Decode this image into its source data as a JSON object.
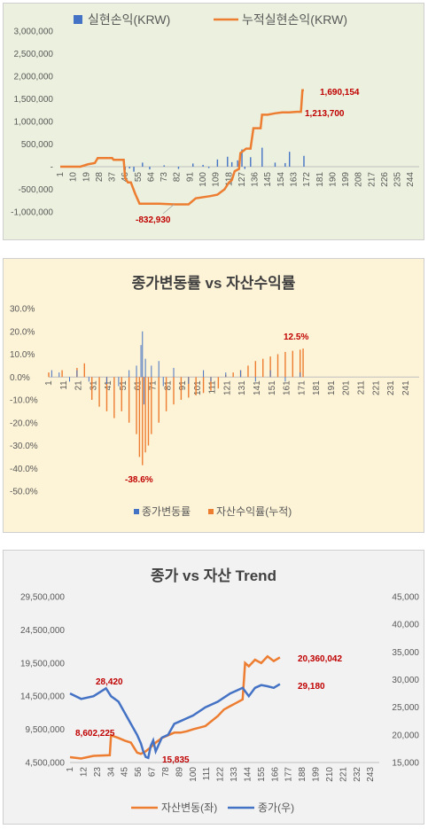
{
  "chart_data": [
    {
      "type": "bar+line",
      "title": "",
      "legend": [
        "실현손익(KRW)",
        "누적실현손익(KRW)"
      ],
      "legend_position": "top",
      "y_ticks": [
        "3,000,000",
        "2,500,000",
        "2,000,000",
        "1,500,000",
        "1,000,000",
        "500,000",
        "-",
        "-500,000",
        "-1,000,000"
      ],
      "ylim": [
        -1000000,
        3000000
      ],
      "x_ticks": [
        "1",
        "10",
        "19",
        "28",
        "37",
        "46",
        "55",
        "64",
        "73",
        "82",
        "91",
        "100",
        "109",
        "118",
        "127",
        "136",
        "145",
        "154",
        "163",
        "172",
        "181",
        "190",
        "199",
        "208",
        "217",
        "226",
        "235",
        "244"
      ],
      "xlim": [
        1,
        250
      ],
      "annotations": [
        "-832,930",
        "1,690,154",
        "1,213,700"
      ],
      "series": [
        {
          "name": "실현손익(KRW)",
          "type": "bar",
          "color": "#4472c4",
          "x": [
            46,
            49,
            52,
            58,
            63,
            73,
            83,
            93,
            100,
            104,
            110,
            117,
            120,
            124,
            127,
            129,
            133,
            141,
            150,
            157,
            160,
            170
          ],
          "y": [
            -80000,
            -40000,
            -110000,
            90000,
            -60000,
            30000,
            -50000,
            70000,
            40000,
            -30000,
            160000,
            220000,
            100000,
            140000,
            380000,
            -50000,
            210000,
            420000,
            90000,
            80000,
            330000,
            240000
          ]
        },
        {
          "name": "누적실현손익(KRW)",
          "type": "line",
          "color": "#ed7d31",
          "x": [
            1,
            15,
            20,
            25,
            27,
            37,
            38,
            45,
            46,
            48,
            50,
            53,
            56,
            70,
            80,
            90,
            95,
            105,
            110,
            115,
            118,
            120,
            122,
            125,
            126,
            128,
            130,
            133,
            135,
            140,
            141,
            145,
            150,
            155,
            160,
            165,
            168,
            169,
            170
          ],
          "y": [
            0,
            0,
            50000,
            80000,
            190000,
            190000,
            150000,
            150000,
            -250000,
            -350000,
            -350000,
            -600000,
            -820000,
            -820000,
            -832930,
            -832930,
            -700000,
            -650000,
            -620000,
            -500000,
            -350000,
            -300000,
            -100000,
            -50000,
            300000,
            350000,
            400000,
            400000,
            850000,
            850000,
            1150000,
            1150000,
            1180000,
            1200000,
            1200000,
            1213700,
            1213700,
            1690154,
            1690154
          ]
        }
      ]
    },
    {
      "type": "bar",
      "title": "종가변동률 vs 자산수익률",
      "legend": [
        "종가변동률",
        "자산수익률(누적)"
      ],
      "legend_position": "bottom",
      "y_ticks": [
        "30.0%",
        "20.0%",
        "10.0%",
        "0.0%",
        "-10.0%",
        "-20.0%",
        "-30.0%",
        "-40.0%",
        "-50.0%"
      ],
      "ylim": [
        -50,
        30
      ],
      "x_ticks": [
        "1",
        "11",
        "21",
        "31",
        "41",
        "51",
        "61",
        "71",
        "81",
        "91",
        "101",
        "111",
        "121",
        "131",
        "141",
        "151",
        "161",
        "171",
        "181",
        "191",
        "201",
        "211",
        "221",
        "231",
        "241"
      ],
      "xlim": [
        1,
        250
      ],
      "annotations": [
        "-38.6%",
        "12.5%"
      ],
      "series": [
        {
          "name": "종가변동률",
          "type": "bar",
          "color": "#4472c4",
          "x": [
            3,
            8,
            15,
            20,
            28,
            40,
            48,
            55,
            60,
            63,
            64,
            65,
            66,
            70,
            75,
            78,
            85,
            95,
            105,
            110,
            120,
            130,
            140,
            150,
            160,
            170
          ],
          "y": [
            3,
            2,
            -2,
            3,
            -2,
            -3,
            -4,
            3,
            5,
            14,
            20,
            -12,
            8,
            5,
            7,
            -4,
            4,
            -3,
            3,
            -2,
            2,
            3,
            -2,
            3,
            -2,
            2
          ]
        },
        {
          "name": "자산수익률(누적)",
          "type": "bar",
          "color": "#ed7d31",
          "x": [
            1,
            10,
            20,
            25,
            30,
            35,
            40,
            45,
            50,
            55,
            60,
            62,
            64,
            66,
            68,
            70,
            75,
            80,
            85,
            90,
            95,
            100,
            105,
            110,
            115,
            120,
            125,
            130,
            135,
            140,
            145,
            150,
            155,
            160,
            165,
            170,
            172
          ],
          "y": [
            2,
            3,
            4,
            6,
            -10,
            -13,
            -15,
            -18,
            -15,
            -20,
            -25,
            -35,
            -38.6,
            -33,
            -30,
            -25,
            -20,
            -15,
            -12,
            -10,
            -9,
            -8,
            -7,
            -6,
            -5,
            1,
            2,
            3,
            5,
            7,
            8,
            9,
            10,
            11,
            11.5,
            12,
            12.5
          ]
        }
      ]
    },
    {
      "type": "line",
      "title": "종가 vs 자산 Trend",
      "legend": [
        "자산변동(좌)",
        "종가(우)"
      ],
      "legend_position": "bottom",
      "y_ticks_left": [
        "29,500,000",
        "24,500,000",
        "19,500,000",
        "14,500,000",
        "9,500,000",
        "4,500,000"
      ],
      "ylim_left": [
        4500000,
        29500000
      ],
      "y_ticks_right": [
        "45,000",
        "40,000",
        "35,000",
        "30,000",
        "25,000",
        "20,000",
        "15,000"
      ],
      "ylim_right": [
        15000,
        45000
      ],
      "x_ticks": [
        "1",
        "12",
        "23",
        "34",
        "45",
        "56",
        "67",
        "78",
        "89",
        "100",
        "111",
        "122",
        "133",
        "144",
        "155",
        "166",
        "177",
        "188",
        "199",
        "210",
        "221",
        "232",
        "243"
      ],
      "xlim": [
        1,
        250
      ],
      "annotations": [
        "28,420",
        "8,602,225",
        "15,835",
        "20,360,042",
        "29,180"
      ],
      "series": [
        {
          "name": "자산변동(좌)",
          "type": "line",
          "color": "#ed7d31",
          "axis": "left",
          "x": [
            1,
            10,
            20,
            33,
            34,
            40,
            45,
            50,
            55,
            58,
            62,
            66,
            70,
            75,
            80,
            85,
            90,
            95,
            100,
            110,
            120,
            125,
            130,
            135,
            140,
            142,
            145,
            150,
            155,
            160,
            165,
            170
          ],
          "y": [
            5300000,
            5100000,
            5500000,
            5600000,
            8600000,
            8200000,
            7800000,
            7500000,
            6000000,
            5800000,
            6200000,
            6800000,
            7500000,
            8200000,
            8600000,
            9000000,
            9000000,
            9200000,
            9500000,
            10000000,
            11500000,
            12500000,
            13000000,
            13500000,
            14000000,
            19500000,
            19000000,
            20000000,
            19500000,
            20500000,
            19800000,
            20360042
          ]
        },
        {
          "name": "종가(우)",
          "type": "line",
          "color": "#4472c4",
          "axis": "right",
          "x": [
            1,
            10,
            20,
            30,
            34,
            40,
            45,
            50,
            55,
            58,
            60,
            62,
            64,
            66,
            68,
            70,
            75,
            80,
            85,
            90,
            95,
            100,
            110,
            120,
            130,
            135,
            140,
            145,
            150,
            155,
            160,
            165,
            170
          ],
          "y": [
            27500,
            26500,
            27000,
            28420,
            27000,
            26000,
            24000,
            22000,
            20000,
            18500,
            17000,
            16000,
            15835,
            18000,
            19000,
            17000,
            19500,
            20000,
            22000,
            22500,
            23000,
            23500,
            25000,
            26000,
            27500,
            28000,
            28500,
            27000,
            28500,
            29000,
            28800,
            28500,
            29180
          ]
        }
      ]
    }
  ]
}
